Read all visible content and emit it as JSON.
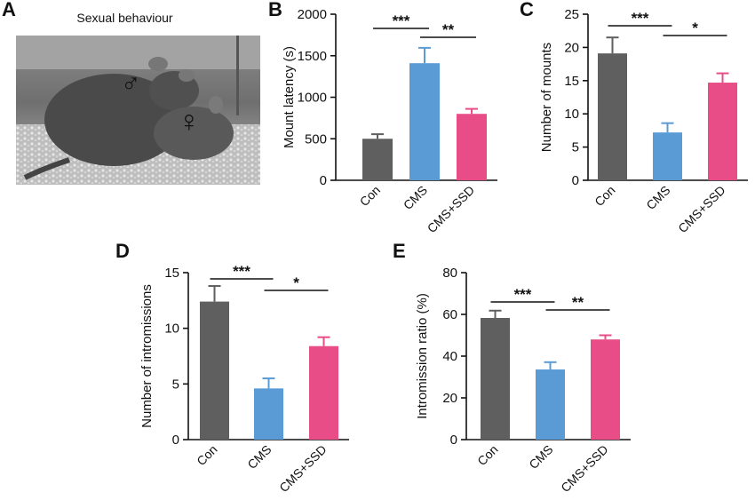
{
  "panel_labels": [
    "A",
    "B",
    "C",
    "D",
    "E"
  ],
  "photo": {
    "title": "Sexual behaviour",
    "male_symbol": "♂",
    "female_symbol": "♀",
    "colors": {
      "male": "#1a2fa0",
      "female": "#e8357a"
    }
  },
  "colors": {
    "Con": "#5f5f5f",
    "CMS": "#5b9bd5",
    "CMS+SSD": "#e84d88"
  },
  "chart_data": [
    {
      "type": "bar",
      "panel": "B",
      "categories": [
        "Con",
        "CMS",
        "CMS+SSD"
      ],
      "values": [
        500,
        1410,
        800
      ],
      "errors": [
        55,
        185,
        60
      ],
      "ylabel": "Mount latency (s)",
      "ylim": [
        0,
        2000
      ],
      "yticks": [
        0,
        500,
        1000,
        1500,
        2000
      ],
      "significance": [
        {
          "from": 0,
          "to": 1,
          "label": "***"
        },
        {
          "from": 1,
          "to": 2,
          "label": "**"
        }
      ]
    },
    {
      "type": "bar",
      "panel": "C",
      "categories": [
        "Con",
        "CMS",
        "CMS+SSD"
      ],
      "values": [
        19.1,
        7.2,
        14.7
      ],
      "errors": [
        2.4,
        1.4,
        1.4
      ],
      "ylabel": "Number of  mounts",
      "ylim": [
        0,
        25
      ],
      "yticks": [
        0,
        5,
        10,
        15,
        20,
        25
      ],
      "significance": [
        {
          "from": 0,
          "to": 1,
          "label": "***"
        },
        {
          "from": 1,
          "to": 2,
          "label": "*"
        }
      ]
    },
    {
      "type": "bar",
      "panel": "D",
      "categories": [
        "Con",
        "CMS",
        "CMS+SSD"
      ],
      "values": [
        12.4,
        4.6,
        8.4
      ],
      "errors": [
        1.4,
        0.9,
        0.8
      ],
      "ylabel": "Number of intromissions",
      "ylim": [
        0,
        15
      ],
      "yticks": [
        0,
        5,
        10,
        15
      ],
      "significance": [
        {
          "from": 0,
          "to": 1,
          "label": "***"
        },
        {
          "from": 1,
          "to": 2,
          "label": "*"
        }
      ]
    },
    {
      "type": "bar",
      "panel": "E",
      "categories": [
        "Con",
        "CMS",
        "CMS+SSD"
      ],
      "values": [
        58.3,
        33.6,
        48
      ],
      "errors": [
        3.5,
        3.5,
        2
      ],
      "ylabel": "Intromission ratio (%)",
      "ylim": [
        0,
        80
      ],
      "yticks": [
        0,
        20,
        40,
        60,
        80
      ],
      "significance": [
        {
          "from": 0,
          "to": 1,
          "label": "***"
        },
        {
          "from": 1,
          "to": 2,
          "label": "**"
        }
      ]
    }
  ]
}
